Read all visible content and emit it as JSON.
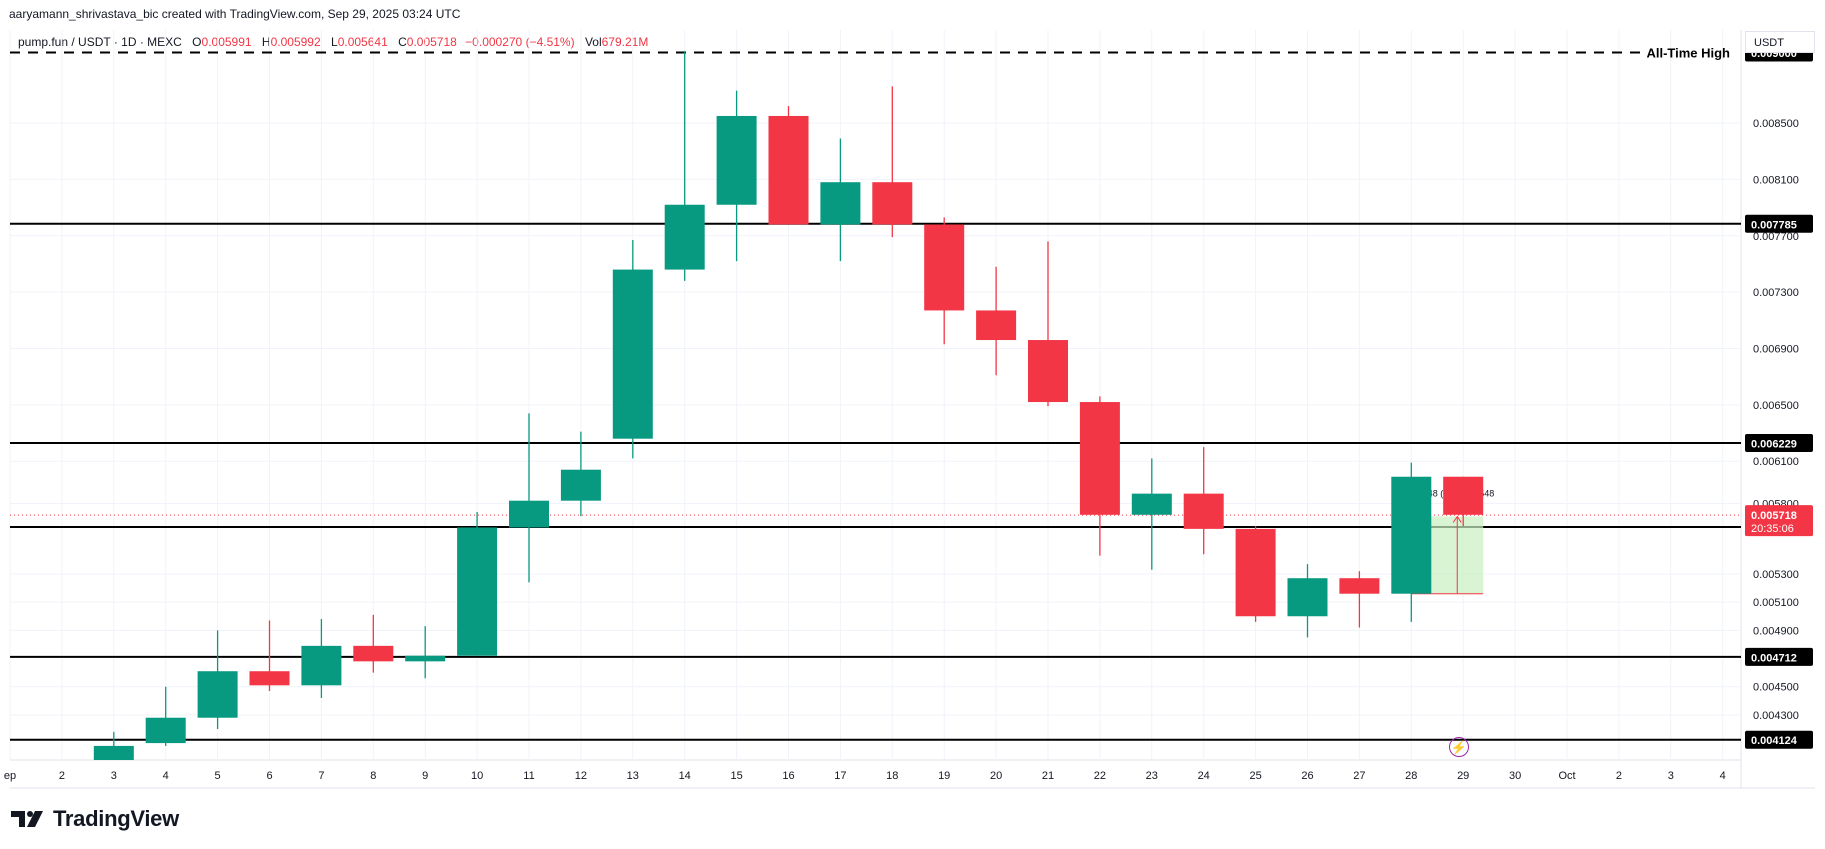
{
  "header": {
    "attribution": "aaryamann_shrivastava_bic created with TradingView.com, Sep 29, 2025 03:24 UTC"
  },
  "legend": {
    "symbol": "pump.fun / USDT · 1D · MEXC",
    "o_label": "O",
    "o_value": "0.005991",
    "h_label": "H",
    "h_value": "0.005992",
    "l_label": "L",
    "l_value": "0.005641",
    "c_label": "C",
    "c_value": "0.005718",
    "change": "−0.000270 (−4.51%)",
    "vol_label": "Vol",
    "vol_value": "679.21M"
  },
  "price_scale_unit": "USDT",
  "colors": {
    "up": "#089981",
    "down": "#f23645",
    "level_line": "#000000",
    "current_price_line": "#f23645",
    "grid": "#f0f3fa",
    "measure_fill": "#c8f0c0",
    "event_icon": "#9c27b0"
  },
  "icons": {
    "event": "lightning-icon",
    "logo": "tradingview-logo-icon"
  },
  "footer": {
    "brand": "TradingView"
  },
  "chart_data": {
    "type": "candlestick",
    "ylim": [
      0.00398,
      0.00916
    ],
    "y_ticks": [
      "0.008500",
      "0.008100",
      "0.007700",
      "0.007300",
      "0.006900",
      "0.006500",
      "0.006100",
      "0.005800",
      "0.005300",
      "0.005100",
      "0.004900",
      "0.004500",
      "0.004300"
    ],
    "x_ticks": [
      "ep",
      "2",
      "3",
      "4",
      "5",
      "6",
      "7",
      "8",
      "9",
      "10",
      "11",
      "12",
      "13",
      "14",
      "15",
      "16",
      "17",
      "18",
      "19",
      "20",
      "21",
      "22",
      "23",
      "24",
      "25",
      "26",
      "27",
      "28",
      "29",
      "30",
      "Oct",
      "2",
      "3",
      "4"
    ],
    "candles": [
      {
        "day": "3",
        "o": 0.00398,
        "h": 0.00418,
        "l": 0.00398,
        "c": 0.00408
      },
      {
        "day": "4",
        "o": 0.0041,
        "h": 0.0045,
        "l": 0.00408,
        "c": 0.00428
      },
      {
        "day": "5",
        "o": 0.00428,
        "h": 0.0049,
        "l": 0.0042,
        "c": 0.00461
      },
      {
        "day": "6",
        "o": 0.00461,
        "h": 0.00497,
        "l": 0.00447,
        "c": 0.00451
      },
      {
        "day": "7",
        "o": 0.00451,
        "h": 0.00498,
        "l": 0.00442,
        "c": 0.00479
      },
      {
        "day": "8",
        "o": 0.00479,
        "h": 0.00501,
        "l": 0.0046,
        "c": 0.00468
      },
      {
        "day": "9",
        "o": 0.00468,
        "h": 0.00493,
        "l": 0.00456,
        "c": 0.00472
      },
      {
        "day": "10",
        "o": 0.00472,
        "h": 0.00574,
        "l": 0.00472,
        "c": 0.00563
      },
      {
        "day": "11",
        "o": 0.00563,
        "h": 0.00644,
        "l": 0.00524,
        "c": 0.00582
      },
      {
        "day": "12",
        "o": 0.00582,
        "h": 0.00631,
        "l": 0.00571,
        "c": 0.00604
      },
      {
        "day": "13",
        "o": 0.00626,
        "h": 0.00767,
        "l": 0.00612,
        "c": 0.00746
      },
      {
        "day": "14",
        "o": 0.00746,
        "h": 0.00901,
        "l": 0.00738,
        "c": 0.00792
      },
      {
        "day": "15",
        "o": 0.00792,
        "h": 0.00873,
        "l": 0.00752,
        "c": 0.00855
      },
      {
        "day": "16",
        "o": 0.00855,
        "h": 0.00862,
        "l": 0.00778,
        "c": 0.00778
      },
      {
        "day": "17",
        "o": 0.00778,
        "h": 0.00839,
        "l": 0.00752,
        "c": 0.00808
      },
      {
        "day": "18",
        "o": 0.00808,
        "h": 0.00876,
        "l": 0.00769,
        "c": 0.00778
      },
      {
        "day": "19",
        "o": 0.00778,
        "h": 0.00783,
        "l": 0.00693,
        "c": 0.00717
      },
      {
        "day": "20",
        "o": 0.00717,
        "h": 0.00748,
        "l": 0.00671,
        "c": 0.00696
      },
      {
        "day": "21",
        "o": 0.00696,
        "h": 0.00766,
        "l": 0.00649,
        "c": 0.00652
      },
      {
        "day": "22",
        "o": 0.00652,
        "h": 0.00656,
        "l": 0.00543,
        "c": 0.00572
      },
      {
        "day": "23",
        "o": 0.00572,
        "h": 0.00612,
        "l": 0.00533,
        "c": 0.00587
      },
      {
        "day": "24",
        "o": 0.00587,
        "h": 0.0062,
        "l": 0.00544,
        "c": 0.00562
      },
      {
        "day": "25",
        "o": 0.00562,
        "h": 0.00564,
        "l": 0.00496,
        "c": 0.005
      },
      {
        "day": "26",
        "o": 0.005,
        "h": 0.00537,
        "l": 0.00485,
        "c": 0.00527
      },
      {
        "day": "27",
        "o": 0.00527,
        "h": 0.00532,
        "l": 0.00492,
        "c": 0.00516
      },
      {
        "day": "28",
        "o": 0.00516,
        "h": 0.00609,
        "l": 0.00496,
        "c": 0.00599
      },
      {
        "day": "29",
        "o": 0.00599,
        "h": 0.00599,
        "l": 0.00564,
        "c": 0.00572
      }
    ],
    "levels": [
      {
        "price": 0.009,
        "label": "0.009000",
        "style": "dashed",
        "annotation": "All-Time High"
      },
      {
        "price": 0.007785,
        "label": "0.007785",
        "style": "solid"
      },
      {
        "price": 0.006229,
        "label": "0.006229",
        "style": "solid"
      },
      {
        "price": 0.005633,
        "label": "0.005633",
        "style": "solid"
      },
      {
        "price": 0.004712,
        "label": "0.004712",
        "style": "solid"
      },
      {
        "price": 0.004124,
        "label": "0.004124",
        "style": "solid"
      }
    ],
    "current_price": {
      "price": 0.005718,
      "label": "0.005718",
      "countdown": "20:35:06"
    },
    "measure": {
      "label": "0.000548 (10.60%) 548",
      "from_day": "28",
      "to_day": "29",
      "low": 0.00516,
      "high": 0.005708
    },
    "event_marker_day": "29"
  }
}
